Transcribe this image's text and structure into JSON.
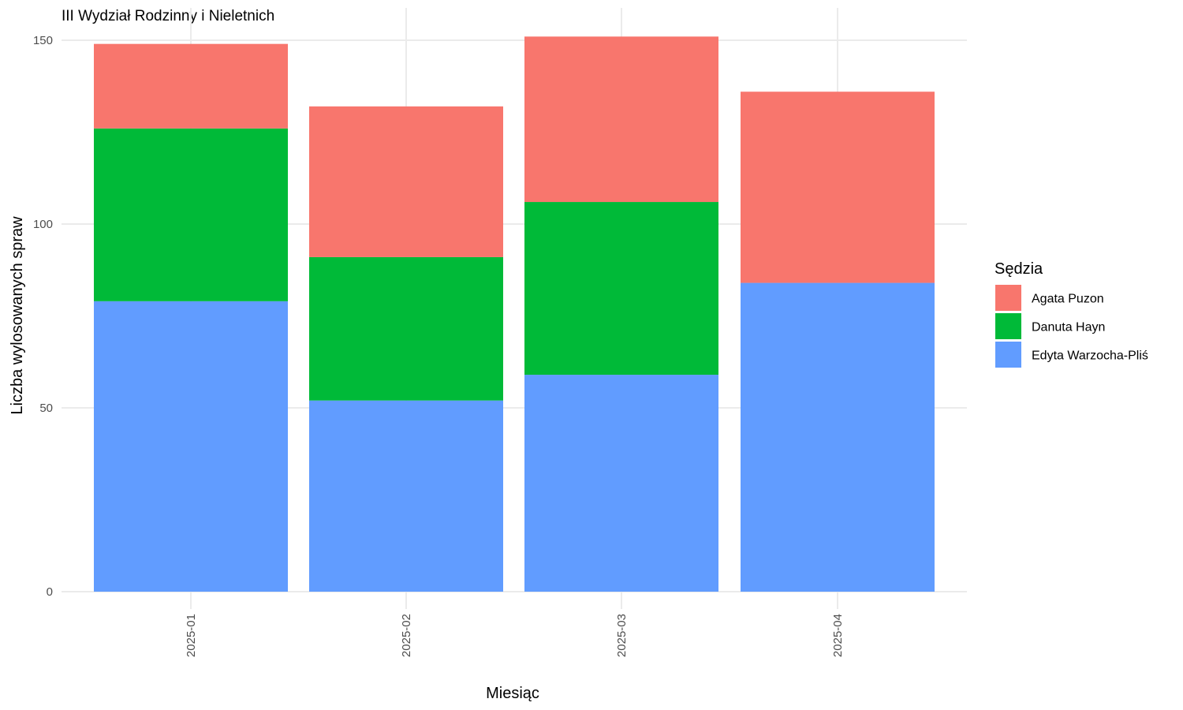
{
  "chart_data": {
    "type": "bar",
    "stacked": true,
    "title": "III Wydział Rodzinny i Nieletnich",
    "xlabel": "Miesiąc",
    "ylabel": "Liczba wylosowanych spraw",
    "categories": [
      "2025-01",
      "2025-02",
      "2025-03",
      "2025-04"
    ],
    "ylim": [
      0,
      150
    ],
    "yticks": [
      0,
      50,
      100,
      150
    ],
    "grid": true,
    "legend": {
      "title": "Sędzia",
      "position": "right"
    },
    "series": [
      {
        "name": "Agata Puzon",
        "color": "#F8766D",
        "values": [
          23,
          41,
          45,
          52
        ]
      },
      {
        "name": "Danuta Hayn",
        "color": "#00BA38",
        "values": [
          47,
          39,
          47,
          0
        ]
      },
      {
        "name": "Edyta Warzocha-Pliś",
        "color": "#619CFF",
        "values": [
          79,
          52,
          59,
          84
        ]
      }
    ],
    "stack_order_bottom_to_top": [
      "Edyta Warzocha-Pliś",
      "Danuta Hayn",
      "Agata Puzon"
    ]
  }
}
